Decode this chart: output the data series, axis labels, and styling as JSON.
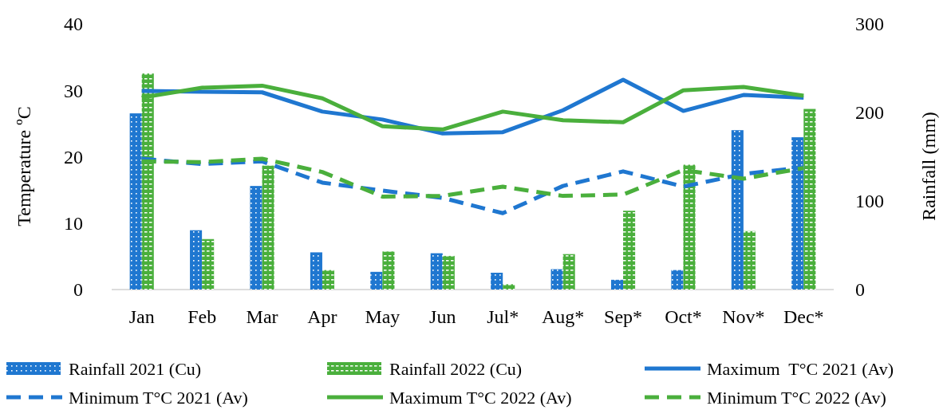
{
  "chart_data": {
    "type": "bar",
    "categories": [
      "Jan",
      "Feb",
      "Mar",
      "Apr",
      "May",
      "Jun",
      "Jul*",
      "Aug*",
      "Sep*",
      "Oct*",
      "Nov*",
      "Dec*"
    ],
    "ylabel": "Temperature ºC",
    "y2label": "Rainfall (mm)",
    "ylim": [
      0,
      40
    ],
    "yticks": [
      0,
      10,
      20,
      30,
      40
    ],
    "y2lim": [
      0,
      300
    ],
    "y2ticks": [
      0,
      100,
      200,
      300
    ],
    "grid": false,
    "legend": "bottom",
    "series": [
      {
        "name": "Rainfall 2021 (Cu)",
        "axis": "y2",
        "color": "#1f77d0",
        "values": [
          199,
          67,
          117,
          42,
          20,
          41,
          19,
          23,
          11,
          22,
          180,
          172
        ]
      },
      {
        "name": "Rainfall 2022 (Cu)",
        "axis": "y2",
        "color": "#4aaf3c",
        "values": [
          244,
          57,
          140,
          22,
          43,
          38,
          6,
          40,
          89,
          141,
          66,
          204
        ]
      },
      {
        "name": "Maximum  T°C 2021 (Av)",
        "type": "line",
        "color": "#1f77d0",
        "line_style": "solid",
        "values": [
          29.9,
          29.8,
          29.7,
          26.8,
          25.6,
          23.5,
          23.7,
          27,
          31.6,
          26.9,
          29.3,
          28.9
        ]
      },
      {
        "name": "Minimum T°C 2021 (Av)",
        "type": "line",
        "color": "#1f77d0",
        "line_style": "dashed",
        "values": [
          19.7,
          18.9,
          19.3,
          16.1,
          14.9,
          13.8,
          11.5,
          15.6,
          17.8,
          15.5,
          17.4,
          18.4
        ]
      },
      {
        "name": "Maximum T°C 2022 (Av)",
        "type": "line",
        "color": "#4aaf3c",
        "line_style": "solid",
        "values": [
          28.9,
          30.4,
          30.7,
          28.8,
          24.6,
          24.1,
          26.8,
          25.5,
          25.2,
          30,
          30.5,
          29.2
        ]
      },
      {
        "name": "Minimum T°C 2022 (Av)",
        "type": "line",
        "color": "#4aaf3c",
        "line_style": "dashed",
        "values": [
          19.3,
          19.2,
          19.7,
          17.7,
          14,
          14.1,
          15.5,
          14.1,
          14.3,
          18,
          16.7,
          18.3
        ]
      }
    ]
  }
}
